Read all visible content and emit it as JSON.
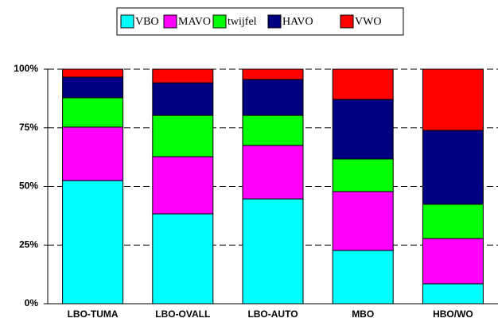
{
  "chart_data": {
    "type": "stacked_bar",
    "categories": [
      "LBO-TUMA",
      "LBO-OVALL",
      "LBO-AUTO",
      "MBO",
      "HBO/WO"
    ],
    "series": [
      {
        "name": "VBO",
        "color": "#00ffff",
        "values": [
          52.5,
          38.3,
          44.7,
          22.7,
          8.5
        ]
      },
      {
        "name": "MAVO",
        "color": "#ff00ff",
        "values": [
          22.8,
          24.4,
          22.8,
          25.1,
          19.3
        ]
      },
      {
        "name": "twijfel",
        "color": "#00ff00",
        "values": [
          12.5,
          17.6,
          12.8,
          13.9,
          14.6
        ]
      },
      {
        "name": "HAVO",
        "color": "#000080",
        "values": [
          8.8,
          13.9,
          15.3,
          25.4,
          31.5
        ]
      },
      {
        "name": "VWO",
        "color": "#ff0000",
        "values": [
          3.4,
          5.8,
          4.4,
          12.9,
          26.1
        ]
      }
    ],
    "ylim": [
      0,
      100
    ],
    "yticks": [
      {
        "value": 0,
        "label": "0%"
      },
      {
        "value": 25,
        "label": "25%"
      },
      {
        "value": 50,
        "label": "50%"
      },
      {
        "value": 75,
        "label": "75%"
      },
      {
        "value": 100,
        "label": "100%"
      }
    ],
    "grid": true
  }
}
